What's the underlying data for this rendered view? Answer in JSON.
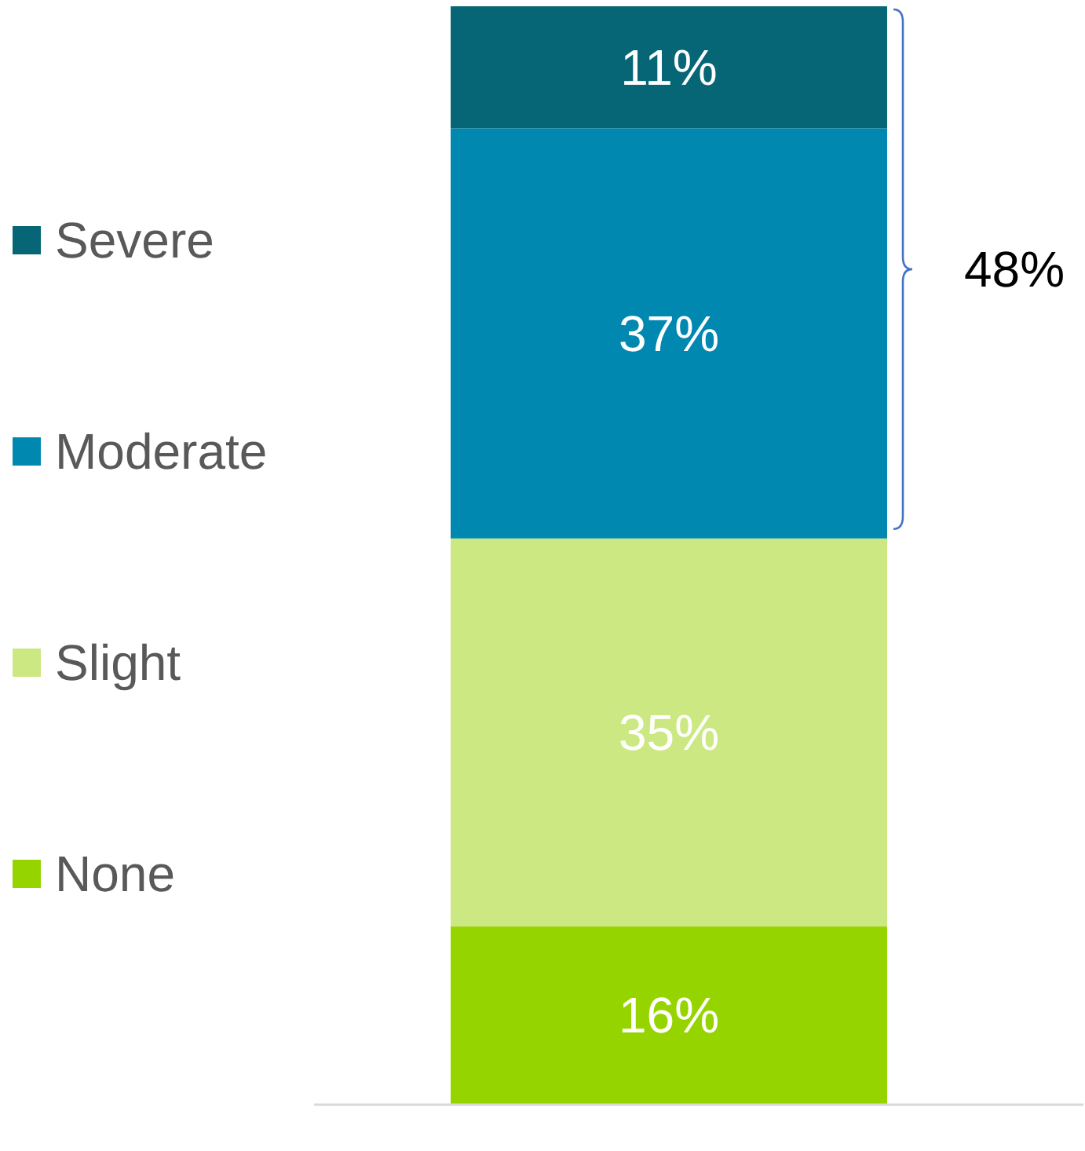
{
  "chart_data": {
    "type": "bar",
    "stacked": true,
    "categories": [
      null
    ],
    "series": [
      {
        "name": "None",
        "color": "#96d400",
        "values": [
          16
        ],
        "value_labels": [
          "16%"
        ]
      },
      {
        "name": "Slight",
        "color": "#cce882",
        "values": [
          35
        ],
        "value_labels": [
          "35%"
        ]
      },
      {
        "name": "Moderate",
        "color": "#0088b0",
        "values": [
          37
        ],
        "value_labels": [
          "37%"
        ]
      },
      {
        "name": "Severe",
        "color": "#066675",
        "values": [
          11
        ],
        "value_labels": [
          "11%"
        ]
      }
    ],
    "annotations": [
      "48%"
    ],
    "legend": "left",
    "grid": false
  }
}
